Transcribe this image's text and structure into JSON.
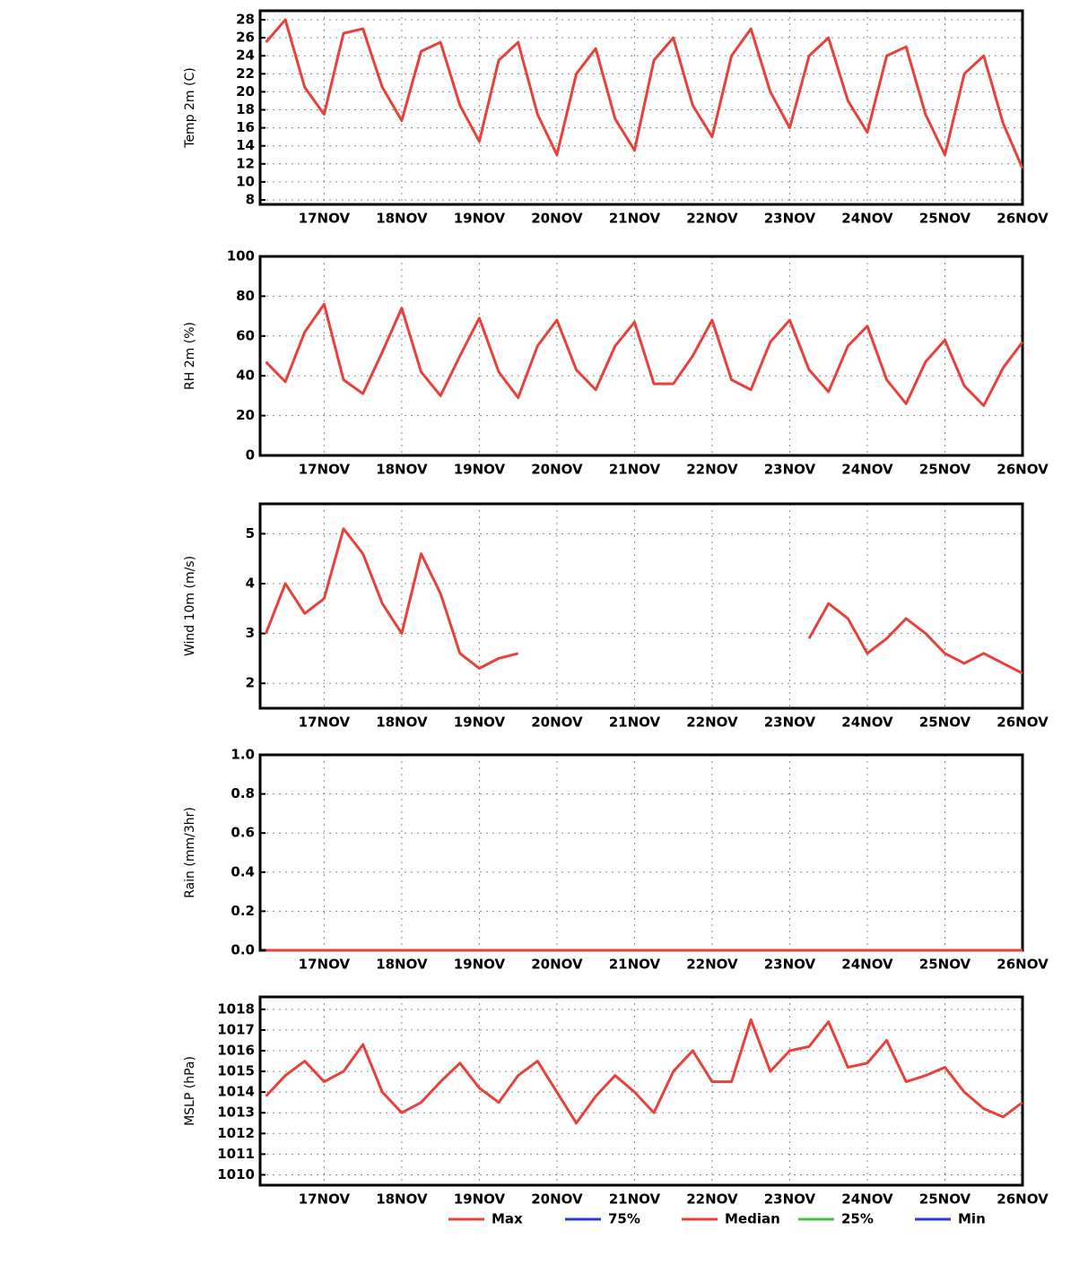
{
  "chart_data": [
    {
      "type": "line",
      "y_label": "Temp 2m (C)",
      "color": "#e8403a",
      "categories": [
        null,
        null,
        null,
        "17NOV",
        null,
        null,
        null,
        "18NOV",
        null,
        null,
        null,
        "19NOV",
        null,
        null,
        null,
        "20NOV",
        null,
        null,
        null,
        "21NOV",
        null,
        null,
        null,
        "22NOV",
        null,
        null,
        null,
        "23NOV",
        null,
        null,
        null,
        "24NOV",
        null,
        null,
        null,
        "25NOV",
        null,
        null,
        null,
        "26NOV"
      ],
      "values": [
        25.5,
        28,
        20.5,
        17.5,
        26.5,
        27,
        20.5,
        16.8,
        24.5,
        25.5,
        18.5,
        14.5,
        23.5,
        25.5,
        17.5,
        13,
        22,
        24.8,
        17,
        13.5,
        23.5,
        26,
        18.5,
        15,
        24,
        27,
        20,
        16,
        24,
        26,
        19,
        15.5,
        24,
        25,
        17.5,
        13,
        22,
        24,
        16.5,
        11.5
      ],
      "ylim": [
        7.5,
        29
      ],
      "yticks": [
        8,
        10,
        12,
        14,
        16,
        18,
        20,
        22,
        24,
        26,
        28
      ],
      "grid": true
    },
    {
      "type": "line",
      "y_label": "RH 2m (%)",
      "color": "#e8403a",
      "categories": [
        null,
        null,
        null,
        "17NOV",
        null,
        null,
        null,
        "18NOV",
        null,
        null,
        null,
        "19NOV",
        null,
        null,
        null,
        "20NOV",
        null,
        null,
        null,
        "21NOV",
        null,
        null,
        null,
        "22NOV",
        null,
        null,
        null,
        "23NOV",
        null,
        null,
        null,
        "24NOV",
        null,
        null,
        null,
        "25NOV",
        null,
        null,
        null,
        "26NOV"
      ],
      "values": [
        47,
        37,
        62,
        76,
        38,
        31,
        52,
        74,
        42,
        30,
        50,
        69,
        42,
        29,
        55,
        68,
        43,
        33,
        55,
        67,
        36,
        36,
        50,
        68,
        38,
        33,
        57,
        68,
        43,
        32,
        55,
        65,
        38,
        26,
        47,
        58,
        35,
        25,
        44,
        57
      ],
      "ylim": [
        0,
        100
      ],
      "yticks": [
        0,
        20,
        40,
        60,
        80,
        100
      ],
      "grid": true
    },
    {
      "type": "line",
      "y_label": "Wind 10m (m/s)",
      "color": "#e8403a",
      "categories": [
        null,
        null,
        null,
        "17NOV",
        null,
        null,
        null,
        "18NOV",
        null,
        null,
        null,
        "19NOV",
        null,
        null,
        null,
        "20NOV",
        null,
        null,
        null,
        "21NOV",
        null,
        null,
        null,
        "22NOV",
        null,
        null,
        null,
        "23NOV",
        null,
        null,
        null,
        "24NOV",
        null,
        null,
        null,
        "25NOV",
        null,
        null,
        null,
        "26NOV"
      ],
      "values": [
        3.0,
        4.0,
        3.4,
        3.7,
        5.1,
        4.6,
        3.6,
        3.0,
        4.6,
        3.8,
        2.6,
        2.3,
        2.5,
        2.6,
        null,
        null,
        null,
        null,
        null,
        null,
        null,
        null,
        null,
        null,
        null,
        null,
        null,
        null,
        2.9,
        3.6,
        3.3,
        2.6,
        2.9,
        3.3,
        3.0,
        2.6,
        2.4,
        2.6,
        2.4,
        2.2
      ],
      "ylim": [
        1.5,
        5.6
      ],
      "yticks": [
        2,
        3,
        4,
        5
      ],
      "grid": true
    },
    {
      "type": "line",
      "y_label": "Rain (mm/3hr)",
      "color": "#e8403a",
      "categories": [
        null,
        null,
        null,
        "17NOV",
        null,
        null,
        null,
        "18NOV",
        null,
        null,
        null,
        "19NOV",
        null,
        null,
        null,
        "20NOV",
        null,
        null,
        null,
        "21NOV",
        null,
        null,
        null,
        "22NOV",
        null,
        null,
        null,
        "23NOV",
        null,
        null,
        null,
        "24NOV",
        null,
        null,
        null,
        "25NOV",
        null,
        null,
        null,
        "26NOV"
      ],
      "values": [
        0,
        0,
        0,
        0,
        0,
        0,
        0,
        0,
        0,
        0,
        0,
        0,
        0,
        0,
        0,
        0,
        0,
        0,
        0,
        0,
        0,
        0,
        0,
        0,
        0,
        0,
        0,
        0,
        0,
        0,
        0,
        0,
        0,
        0,
        0,
        0,
        0,
        0,
        0,
        0
      ],
      "ylim": [
        0,
        1
      ],
      "yticks": [
        {
          "value": 0,
          "label": "0.0"
        },
        {
          "value": 0.2,
          "label": "0.2"
        },
        {
          "value": 0.4,
          "label": "0.4"
        },
        {
          "value": 0.6,
          "label": "0.6"
        },
        {
          "value": 0.8,
          "label": "0.8"
        },
        {
          "value": 1,
          "label": "1.0"
        }
      ],
      "grid": true
    },
    {
      "type": "line",
      "y_label": "MSLP (hPa)",
      "color": "#e8403a",
      "categories": [
        null,
        null,
        null,
        "17NOV",
        null,
        null,
        null,
        "18NOV",
        null,
        null,
        null,
        "19NOV",
        null,
        null,
        null,
        "20NOV",
        null,
        null,
        null,
        "21NOV",
        null,
        null,
        null,
        "22NOV",
        null,
        null,
        null,
        "23NOV",
        null,
        null,
        null,
        "24NOV",
        null,
        null,
        null,
        "25NOV",
        null,
        null,
        null,
        "26NOV"
      ],
      "values": [
        1013.8,
        1014.8,
        1015.5,
        1014.5,
        1015,
        1016.3,
        1014,
        1013,
        1013.5,
        1014.5,
        1015.4,
        1014.2,
        1013.5,
        1014.8,
        1015.5,
        1014,
        1012.5,
        1013.8,
        1014.8,
        1014,
        1013,
        1015,
        1016,
        1014.5,
        1014.5,
        1017.5,
        1015,
        1016,
        1016.2,
        1017.4,
        1015.2,
        1015.4,
        1016.5,
        1014.5,
        1014.8,
        1015.2,
        1014,
        1013.2,
        1012.8,
        1013.5
      ],
      "ylim": [
        1009.5,
        1018.6
      ],
      "yticks": [
        1010,
        1011,
        1012,
        1013,
        1014,
        1015,
        1016,
        1017,
        1018
      ],
      "grid": true
    }
  ],
  "legend": [
    {
      "label": "Max",
      "color": "#e8403a"
    },
    {
      "label": "75%",
      "color": "#2a3fd0"
    },
    {
      "label": "Median",
      "color": "#e8403a"
    },
    {
      "label": "25%",
      "color": "#3ec43e"
    },
    {
      "label": "Min",
      "color": "#2a3fd0"
    }
  ]
}
